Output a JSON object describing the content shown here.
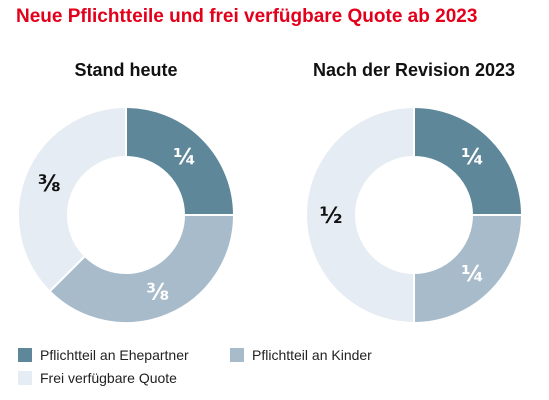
{
  "title": "Neue Pflichtteile und frei verfügbare Quote ab 2023",
  "colors": {
    "spouse": "#5e8899",
    "children": "#a8bbca",
    "free": "#e6ecf3",
    "title": "#e3001b"
  },
  "legend": [
    {
      "label": "Pflichtteil an Ehepartner",
      "color": "#5e8899"
    },
    {
      "label": "Pflichtteil an Kinder",
      "color": "#a8bbca"
    },
    {
      "label": "Frei verfügbare Quote",
      "color": "#e6ecf3"
    }
  ],
  "chart_data": [
    {
      "type": "pie",
      "title": "Stand heute",
      "slices": [
        {
          "name": "Pflichtteil an Ehepartner",
          "value": 0.25,
          "label": "¼",
          "color": "#5e8899",
          "label_color": "#ffffff"
        },
        {
          "name": "Pflichtteil an Kinder",
          "value": 0.375,
          "label": "⅜",
          "color": "#a8bbca",
          "label_color": "#ffffff"
        },
        {
          "name": "Frei verfügbare Quote",
          "value": 0.375,
          "label": "⅜",
          "color": "#e6ecf3",
          "label_color": "#111111"
        }
      ]
    },
    {
      "type": "pie",
      "title": "Nach der Revision 2023",
      "slices": [
        {
          "name": "Pflichtteil an Ehepartner",
          "value": 0.25,
          "label": "¼",
          "color": "#5e8899",
          "label_color": "#ffffff"
        },
        {
          "name": "Pflichtteil an Kinder",
          "value": 0.25,
          "label": "¼",
          "color": "#a8bbca",
          "label_color": "#ffffff"
        },
        {
          "name": "Frei verfügbare Quote",
          "value": 0.5,
          "label": "½",
          "color": "#e6ecf3",
          "label_color": "#111111"
        }
      ]
    }
  ]
}
